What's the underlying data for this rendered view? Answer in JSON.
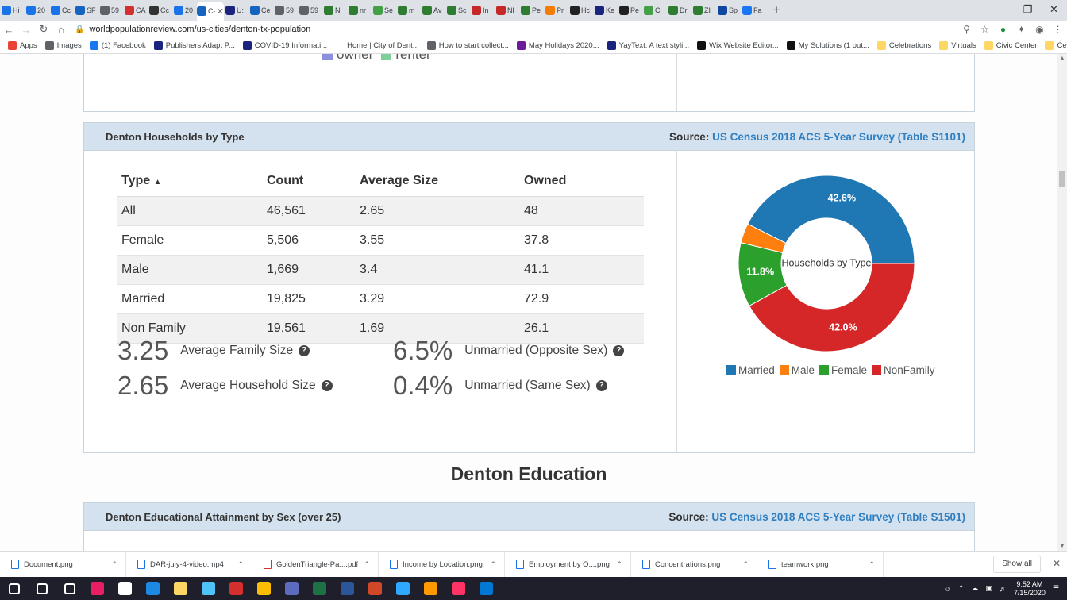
{
  "browser": {
    "tabs": [
      {
        "label": "Hi",
        "color": "#1a73e8"
      },
      {
        "label": "20",
        "color": "#1a73e8"
      },
      {
        "label": "Cc",
        "color": "#1a73e8"
      },
      {
        "label": "SF",
        "color": "#1565c0"
      },
      {
        "label": "59",
        "color": "#5f6368"
      },
      {
        "label": "CA",
        "color": "#d32f2f"
      },
      {
        "label": "Cc",
        "color": "#333333"
      },
      {
        "label": "20",
        "color": "#1a73e8"
      },
      {
        "label": "Ce",
        "color": "#1565c0"
      },
      {
        "label": "U:",
        "color": "#1a237e"
      },
      {
        "label": "Ce",
        "color": "#1565c0"
      },
      {
        "label": "59",
        "color": "#5f6368"
      },
      {
        "label": "59",
        "color": "#5f6368"
      },
      {
        "label": "Nl",
        "color": "#2e7d32"
      },
      {
        "label": "nr",
        "color": "#2e7d32"
      },
      {
        "label": "Se",
        "color": "#43a047"
      },
      {
        "label": "m",
        "color": "#2e7d32"
      },
      {
        "label": "Av",
        "color": "#2e7d32"
      },
      {
        "label": "Sc",
        "color": "#2e7d32"
      },
      {
        "label": "In",
        "color": "#c62828"
      },
      {
        "label": "Nl",
        "color": "#c62828"
      },
      {
        "label": "Pe",
        "color": "#2e7d32"
      },
      {
        "label": "Pr",
        "color": "#f57c00"
      },
      {
        "label": "Hc",
        "color": "#212121"
      },
      {
        "label": "Ke",
        "color": "#1a237e"
      },
      {
        "label": "Pe",
        "color": "#212121"
      },
      {
        "label": "Ci",
        "color": "#43a047"
      },
      {
        "label": "Dr",
        "color": "#2e7d32"
      },
      {
        "label": "ZI",
        "color": "#2e7d32"
      },
      {
        "label": "Sp",
        "color": "#0d47a1"
      },
      {
        "label": "Fa",
        "color": "#1877f2"
      }
    ],
    "url": "worldpopulationreview.com/us-cities/denton-tx-population",
    "bookmarks": [
      {
        "label": "Apps",
        "color": "#ea4335"
      },
      {
        "label": "Images",
        "color": "#5f6368"
      },
      {
        "label": "(1) Facebook",
        "color": "#1877f2"
      },
      {
        "label": "Publishers Adapt P...",
        "color": "#1a237e"
      },
      {
        "label": "COVID-19 Informati...",
        "color": "#1a237e"
      },
      {
        "label": "Home | City of Dent...",
        "color": "#ffffff"
      },
      {
        "label": "How to start collect...",
        "color": "#5f6368"
      },
      {
        "label": "May Holidays 2020...",
        "color": "#6a1b9a"
      },
      {
        "label": "YayText: A text styli...",
        "color": "#1a237e"
      },
      {
        "label": "Wix Website Editor...",
        "color": "#111111"
      },
      {
        "label": "My Solutions (1 out...",
        "color": "#111111"
      },
      {
        "label": "Celebrations",
        "color": "#fdd663"
      },
      {
        "label": "Virtuals",
        "color": "#fdd663"
      },
      {
        "label": "Civic Center",
        "color": "#fdd663"
      },
      {
        "label": "Certs",
        "color": "#fdd663"
      }
    ]
  },
  "prev_panel": {
    "legend": [
      {
        "label": "owner",
        "color": "#8c8fdc"
      },
      {
        "label": "renter",
        "color": "#7ed09a"
      }
    ]
  },
  "households": {
    "title": "Denton Households by Type",
    "source_prefix": "Source:",
    "source_link": "US Census 2018 ACS 5-Year Survey (Table S1101)",
    "columns": [
      "Type",
      "Count",
      "Average Size",
      "Owned"
    ],
    "rows": [
      [
        "All",
        "46,561",
        "2.65",
        "48"
      ],
      [
        "Female",
        "5,506",
        "3.55",
        "37.8"
      ],
      [
        "Male",
        "1,669",
        "3.4",
        "41.1"
      ],
      [
        "Married",
        "19,825",
        "3.29",
        "72.9"
      ],
      [
        "Non Family",
        "19,561",
        "1.69",
        "26.1"
      ]
    ],
    "stats": [
      {
        "value": "3.25",
        "label": "Average Family Size"
      },
      {
        "value": "2.65",
        "label": "Average Household Size"
      },
      {
        "value": "6.5%",
        "label": "Unmarried (Opposite Sex)"
      },
      {
        "value": "0.4%",
        "label": "Unmarried (Same Sex)"
      }
    ]
  },
  "chart_data": {
    "type": "pie",
    "title": "Households by Type",
    "categories": [
      "Married",
      "Male",
      "Female",
      "NonFamily"
    ],
    "values": [
      42.6,
      3.6,
      11.8,
      42.0
    ],
    "data_labels": [
      "42.6%",
      "",
      "11.8%",
      "42.0%"
    ],
    "colors": [
      "#1f77b4",
      "#ff7f0e",
      "#2ca02c",
      "#d62728"
    ],
    "legend_position": "bottom"
  },
  "education": {
    "heading": "Denton Education",
    "title": "Denton Educational Attainment by Sex (over 25)",
    "source_prefix": "Source:",
    "source_link": "US Census 2018 ACS 5-Year Survey (Table S1501)"
  },
  "downloads": {
    "items": [
      {
        "label": "Document.png",
        "color": "#1a73e8"
      },
      {
        "label": "DAR-july-4-video.mp4",
        "color": "#1a73e8"
      },
      {
        "label": "GoldenTriangle-Pa....pdf",
        "color": "#d32f2f"
      },
      {
        "label": "Income by Location.png",
        "color": "#1a73e8"
      },
      {
        "label": "Employment by O....png",
        "color": "#1a73e8"
      },
      {
        "label": "Concentrations.png",
        "color": "#1a73e8"
      },
      {
        "label": "teamwork.png",
        "color": "#1a73e8"
      }
    ],
    "show_all": "Show all"
  },
  "taskbar": {
    "apps": [
      {
        "name": "windows-start",
        "color": "#ffffff"
      },
      {
        "name": "search",
        "color": "#ffffff"
      },
      {
        "name": "task-view",
        "color": "#ffffff"
      },
      {
        "name": "app-colorful",
        "color": "#e91e63"
      },
      {
        "name": "app-globe",
        "color": "#ffffff"
      },
      {
        "name": "edge",
        "color": "#1e88e5"
      },
      {
        "name": "file-explorer",
        "color": "#fdd663"
      },
      {
        "name": "app-blue",
        "color": "#4fc3f7"
      },
      {
        "name": "acrobat",
        "color": "#d32f2f"
      },
      {
        "name": "chrome",
        "color": "#fbbc04"
      },
      {
        "name": "teams",
        "color": "#5c6bc0"
      },
      {
        "name": "excel",
        "color": "#1e7145"
      },
      {
        "name": "word",
        "color": "#2b579a"
      },
      {
        "name": "powerpoint",
        "color": "#d24726"
      },
      {
        "name": "photoshop",
        "color": "#31a8ff"
      },
      {
        "name": "illustrator",
        "color": "#ff9a00"
      },
      {
        "name": "indesign",
        "color": "#ff3366"
      },
      {
        "name": "outlook",
        "color": "#0078d4"
      }
    ],
    "time": "9:52 AM",
    "date": "7/15/2020"
  }
}
